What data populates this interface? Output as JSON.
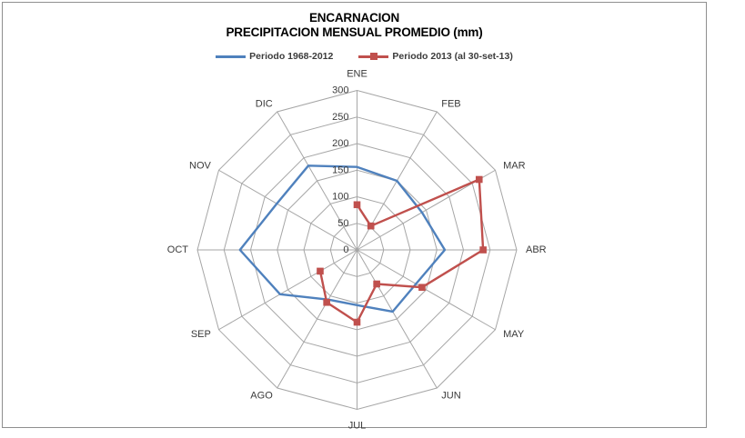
{
  "window": {
    "background": "#ffffff",
    "frame_border_color": "#8f8f8f"
  },
  "title": {
    "line1": "ENCARNACION",
    "line2": "PRECIPITACION MENSUAL PROMEDIO (mm)"
  },
  "legend": {
    "position": "top",
    "items": [
      {
        "label": "Periodo 1968-2012",
        "color": "#4F81BD",
        "marker": "line"
      },
      {
        "label": "Periodo 2013 (al 30-set-13)",
        "color": "#C0504D",
        "marker": "line-square"
      }
    ]
  },
  "chart_data": {
    "type": "radar",
    "title": "ENCARNACION PRECIPITACION MENSUAL PROMEDIO (mm)",
    "categories": [
      "ENE",
      "FEB",
      "MAR",
      "ABR",
      "MAY",
      "JUN",
      "JUL",
      "AGO",
      "SEP",
      "OCT",
      "NOV",
      "DIC"
    ],
    "series": [
      {
        "name": "Periodo 1968-2012",
        "color": "#4F81BD",
        "closed": true,
        "marker": "none",
        "values": [
          156,
          150,
          141,
          165,
          128,
          134,
          104,
          108,
          167,
          220,
          174,
          183
        ]
      },
      {
        "name": "Periodo 2013 (al 30-set-13)",
        "color": "#C0504D",
        "closed": false,
        "marker": "square",
        "values": [
          85,
          52,
          265,
          237,
          141,
          74,
          136,
          114,
          80,
          null,
          null,
          null
        ]
      }
    ],
    "radial_axis": {
      "min": 0,
      "max": 300,
      "tick_interval": 50,
      "ticks": [
        0,
        50,
        100,
        150,
        200,
        250,
        300
      ]
    },
    "grid": {
      "rings": 6,
      "spokes": 12,
      "shape": "polygon",
      "color": "#A6A6A6",
      "on": true
    },
    "axis_label_color": "#3a3a3a",
    "legend_position": "top"
  }
}
